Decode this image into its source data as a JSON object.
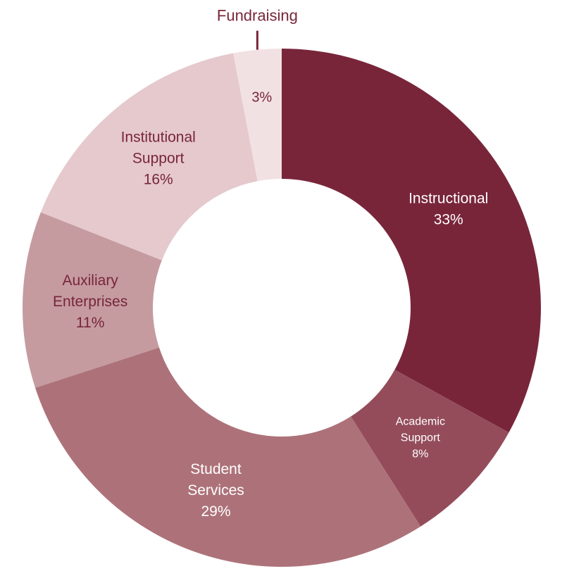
{
  "chart_data": {
    "type": "pie",
    "donut": true,
    "title": "",
    "legend": "none",
    "slices": [
      {
        "name": "Instructional",
        "label_lines": [
          "Instructional"
        ],
        "value": 33,
        "value_label": "33%",
        "color": "#78253A",
        "text_color": "#FFFFFF"
      },
      {
        "name": "Academic Support",
        "label_lines": [
          "Academic",
          "Support"
        ],
        "value": 8,
        "value_label": "8%",
        "color": "#944C5B",
        "text_color": "#FFFFFF"
      },
      {
        "name": "Student Services",
        "label_lines": [
          "Student",
          "Services"
        ],
        "value": 29,
        "value_label": "29%",
        "color": "#AD7279",
        "text_color": "#FFFFFF"
      },
      {
        "name": "Auxiliary Enterprises",
        "label_lines": [
          "Auxiliary",
          "Enterprises"
        ],
        "value": 11,
        "value_label": "11%",
        "color": "#C59BA0",
        "text_color": "#78253A"
      },
      {
        "name": "Institutional Support",
        "label_lines": [
          "Institutional",
          "Support"
        ],
        "value": 16,
        "value_label": "16%",
        "color": "#E5C9CD",
        "text_color": "#78253A"
      },
      {
        "name": "Fundraising",
        "label_lines": [],
        "value": 3,
        "value_label": "3%",
        "color": "#F2E1E3",
        "text_color": "#78253A",
        "callout_label": "Fundraising"
      }
    ]
  }
}
